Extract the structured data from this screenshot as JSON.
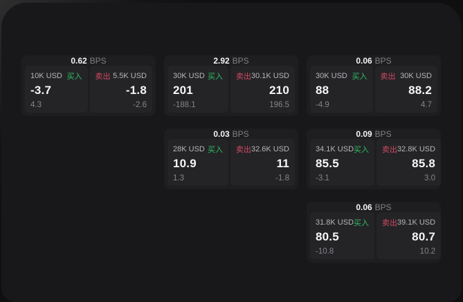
{
  "labels": {
    "bps_unit": "BPS",
    "buy": "买入",
    "sell": "卖出"
  },
  "colors": {
    "buy_green": "#2fbe63",
    "sell_red": "#d0495f",
    "surface": "#18181a",
    "card": "#1e1e20",
    "panel": "#242427"
  },
  "cards": [
    {
      "bps": "0.62",
      "buy": {
        "amount": "10K USD",
        "price": "-3.7",
        "sub": "4.3"
      },
      "sell": {
        "amount": "5.5K USD",
        "price": "-1.8",
        "sub": "-2.6"
      }
    },
    {
      "bps": "2.92",
      "buy": {
        "amount": "30K USD",
        "price": "201",
        "sub": "-188.1"
      },
      "sell": {
        "amount": "30.1K USD",
        "price": "210",
        "sub": "196.5"
      }
    },
    {
      "bps": "0.06",
      "buy": {
        "amount": "30K USD",
        "price": "88",
        "sub": "-4.9"
      },
      "sell": {
        "amount": "30K USD",
        "price": "88.2",
        "sub": "4.7"
      }
    },
    {
      "bps": "0.03",
      "buy": {
        "amount": "28K USD",
        "price": "10.9",
        "sub": "1.3"
      },
      "sell": {
        "amount": "32.6K USD",
        "price": "11",
        "sub": "-1.8"
      }
    },
    {
      "bps": "0.09",
      "buy": {
        "amount": "34.1K USD",
        "price": "85.5",
        "sub": "-3.1"
      },
      "sell": {
        "amount": "32.8K USD",
        "price": "85.8",
        "sub": "3.0"
      }
    },
    {
      "bps": "0.06",
      "buy": {
        "amount": "31.8K USD",
        "price": "80.5",
        "sub": "-10.8"
      },
      "sell": {
        "amount": "39.1K USD",
        "price": "80.7",
        "sub": "10.2"
      }
    }
  ]
}
